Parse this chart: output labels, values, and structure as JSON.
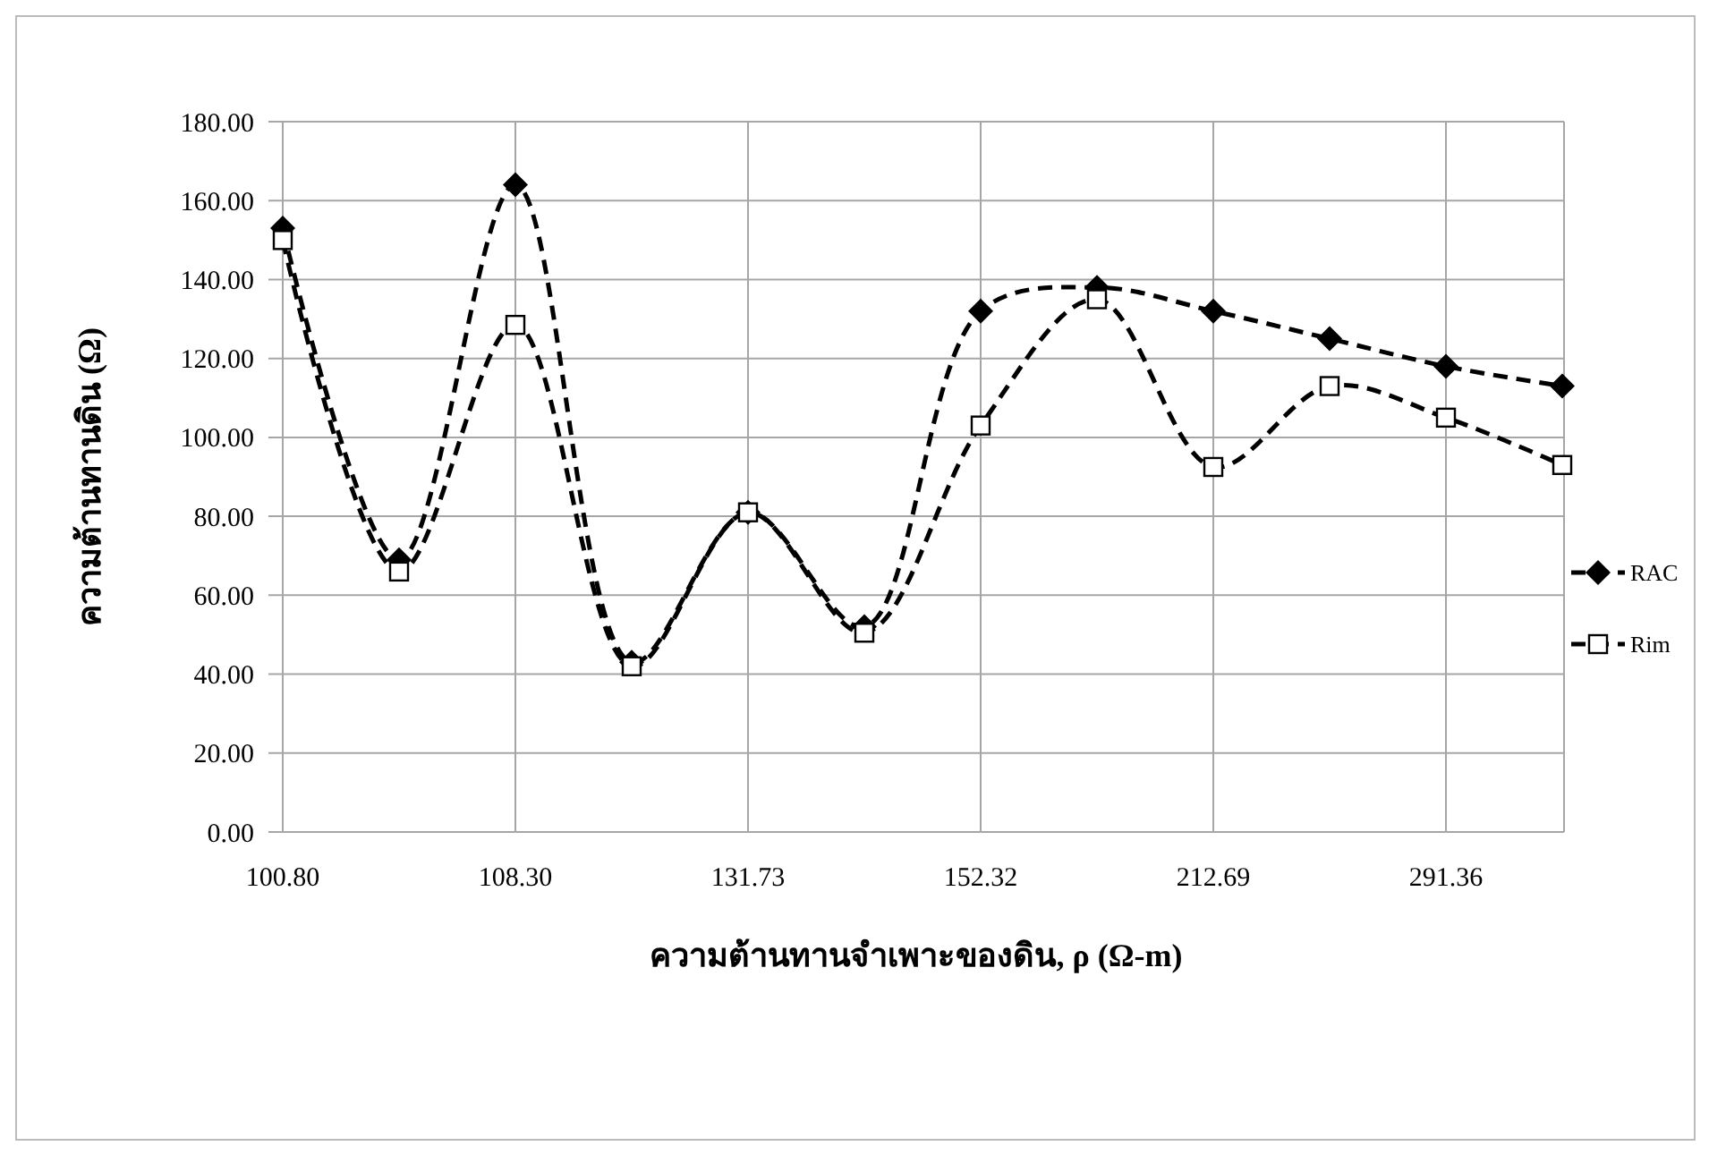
{
  "chart_data": {
    "type": "line",
    "xlabel": "ความต้านทานจำเพาะของดิน, ρ (Ω-m)",
    "ylabel": "ความต้านทานดิน (Ω)",
    "categories": [
      "100.80",
      null,
      "108.30",
      null,
      "131.73",
      null,
      "152.32",
      null,
      "212.69",
      null,
      "291.36",
      null
    ],
    "series": [
      {
        "name": "RAC",
        "color": "#000000",
        "marker": "diamond",
        "line_style": "dashed",
        "values": [
          153,
          69,
          164,
          43,
          81,
          52,
          132,
          138,
          132,
          125,
          118,
          113
        ]
      },
      {
        "name": "Rim",
        "color": "#000000",
        "marker": "square",
        "line_style": "dashed",
        "values": [
          150,
          66,
          128.5,
          42,
          81,
          50.5,
          103,
          135,
          92.5,
          113,
          105,
          93
        ]
      }
    ],
    "ylim": [
      0,
      180
    ],
    "yticks": [
      {
        "value": 0,
        "label": "0.00"
      },
      {
        "value": 20,
        "label": "20.00"
      },
      {
        "value": 40,
        "label": "40.00"
      },
      {
        "value": 60,
        "label": "60.00"
      },
      {
        "value": 80,
        "label": "80.00"
      },
      {
        "value": 100,
        "label": "100.00"
      },
      {
        "value": 120,
        "label": "120.00"
      },
      {
        "value": 140,
        "label": "140.00"
      },
      {
        "value": 160,
        "label": "160.00"
      },
      {
        "value": 180,
        "label": "180.00"
      }
    ],
    "grid": true,
    "legend": "right"
  }
}
